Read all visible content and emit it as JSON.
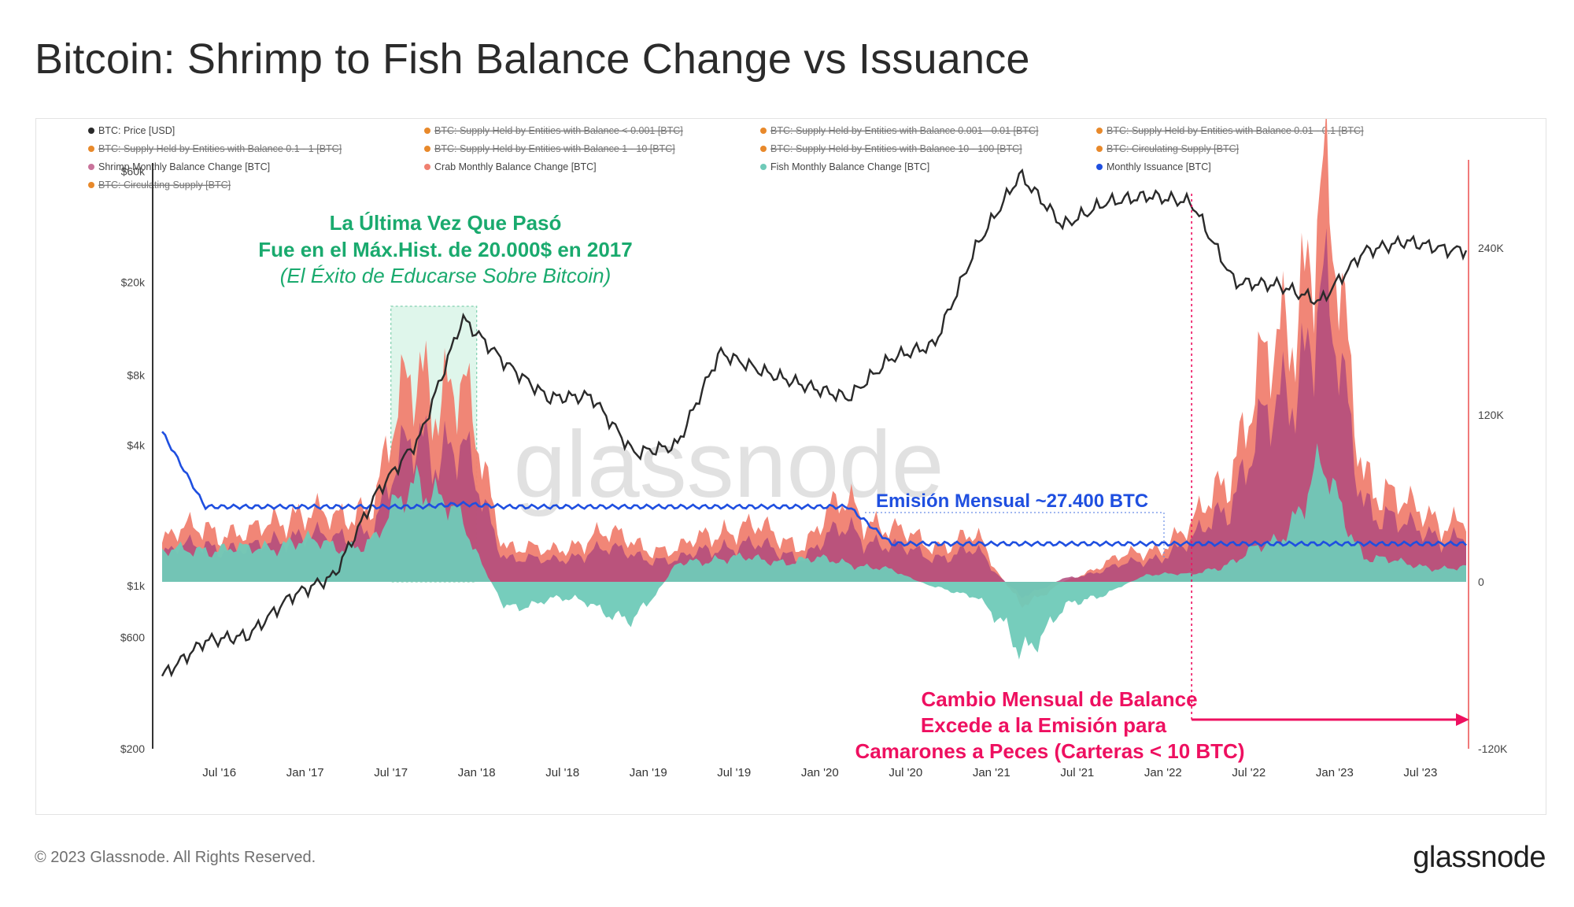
{
  "title": "Bitcoin: Shrimp to Fish Balance Change vs Issuance",
  "footer": {
    "copyright": "© 2023 Glassnode. All Rights Reserved.",
    "logo": "glassnode"
  },
  "watermark": "glassnode",
  "colors": {
    "price": "#2a2a2a",
    "shrimp": "#b04a7c",
    "crab": "#f08070",
    "fish": "#6fcab8",
    "issuance": "#1f4fe0",
    "disabled": "#e8892b",
    "annotation_green": "#1aaa6e",
    "annotation_red": "#ee1060",
    "annotation_blue": "#1f4fe0"
  },
  "legend": [
    {
      "label": "BTC: Price [USD]",
      "color": "#2a2a2a",
      "disabled": false
    },
    {
      "label": "BTC: Supply Held by Entities with Balance < 0.001 [BTC]",
      "color": "#e8892b",
      "disabled": true
    },
    {
      "label": "BTC: Supply Held by Entities with Balance 0.001 - 0.01 [BTC]",
      "color": "#e8892b",
      "disabled": true
    },
    {
      "label": "BTC: Supply Held by Entities with Balance 0.01 - 0.1 [BTC]",
      "color": "#e8892b",
      "disabled": true
    },
    {
      "label": "BTC: Supply Held by Entities with Balance 0.1 - 1 [BTC]",
      "color": "#e8892b",
      "disabled": true
    },
    {
      "label": "BTC: Supply Held by Entities with Balance 1 - 10 [BTC]",
      "color": "#e8892b",
      "disabled": true
    },
    {
      "label": "BTC: Supply Held by Entities with Balance 10 - 100 [BTC]",
      "color": "#e8892b",
      "disabled": true
    },
    {
      "label": "BTC: Circulating Supply [BTC]",
      "color": "#e8892b",
      "disabled": true
    },
    {
      "label": "Shrimp Monthly Balance Change [BTC]",
      "color": "#c9739b",
      "disabled": false
    },
    {
      "label": "Crab Monthly Balance Change [BTC]",
      "color": "#f08070",
      "disabled": false
    },
    {
      "label": "Fish Monthly Balance Change [BTC]",
      "color": "#6fcab8",
      "disabled": false
    },
    {
      "label": "Monthly Issuance [BTC]",
      "color": "#1f4fe0",
      "disabled": false
    },
    {
      "label": "BTC: Circulating Supply [BTC]",
      "color": "#e8892b",
      "disabled": true
    }
  ],
  "annotations": {
    "green_line1": "La Última Vez Que Pasó",
    "green_line2": "Fue en el Máx.Hist. de 20.000$ en 2017",
    "green_line3": "(El Éxito de Educarse Sobre Bitcoin)",
    "issuance_label": "Emisión Mensual ~27.400 BTC",
    "red_line1": "Cambio Mensual de Balance",
    "red_line2": "Excede a la Emisión para",
    "red_line3": "Camarones a Peces (Carteras < 10 BTC)"
  },
  "chart_data": {
    "type": "area",
    "x_ticks": [
      "Jul '16",
      "Jan '17",
      "Jul '17",
      "Jan '18",
      "Jul '18",
      "Jan '19",
      "Jul '19",
      "Jan '20",
      "Jul '20",
      "Jan '21",
      "Jul '21",
      "Jan '22",
      "Jul '22",
      "Jan '23",
      "Jul '23"
    ],
    "y_left": {
      "label": "BTC: Price [USD]",
      "scale": "log",
      "ticks": [
        "$60k",
        "$20k",
        "$8k",
        "$4k",
        "$1k",
        "$600",
        "$200"
      ]
    },
    "y_right": {
      "label": "Monthly Balance Change [BTC]",
      "ticks": [
        "240K",
        "120K",
        "0",
        "-120K"
      ],
      "range": [
        -120000,
        300000
      ]
    },
    "x": [
      "2016-03",
      "2016-06",
      "2016-09",
      "2016-12",
      "2017-03",
      "2017-06",
      "2017-09",
      "2017-12",
      "2018-03",
      "2018-06",
      "2018-09",
      "2018-12",
      "2019-03",
      "2019-06",
      "2019-09",
      "2019-12",
      "2020-03",
      "2020-06",
      "2020-09",
      "2020-12",
      "2021-03",
      "2021-06",
      "2021-09",
      "2021-12",
      "2022-03",
      "2022-06",
      "2022-09",
      "2022-12",
      "2023-03",
      "2023-06",
      "2023-09"
    ],
    "price_usd": [
      410,
      580,
      610,
      900,
      1100,
      2500,
      4300,
      14000,
      9000,
      6400,
      6500,
      3700,
      4000,
      10000,
      8300,
      7200,
      6400,
      9500,
      10800,
      29000,
      58000,
      35000,
      44000,
      47000,
      44000,
      20000,
      19500,
      16500,
      27000,
      30000,
      27500
    ],
    "series": [
      {
        "name": "Shrimp Monthly Balance Change [BTC]",
        "values": [
          8000,
          12000,
          9000,
          15000,
          12000,
          20000,
          50000,
          40000,
          8000,
          6000,
          10000,
          9000,
          6000,
          12000,
          10000,
          8000,
          15000,
          10000,
          8000,
          9000,
          -3000,
          5000,
          3000,
          8000,
          14000,
          35000,
          70000,
          120000,
          35000,
          20000,
          18000
        ]
      },
      {
        "name": "Crab Monthly Balance Change [BTC]",
        "values": [
          20000,
          30000,
          22000,
          38000,
          30000,
          45000,
          110000,
          90000,
          20000,
          14000,
          24000,
          20000,
          15000,
          28000,
          26000,
          20000,
          45000,
          25000,
          20000,
          22000,
          -15000,
          -5000,
          10000,
          16000,
          22000,
          60000,
          95000,
          160000,
          50000,
          30000,
          28000
        ]
      },
      {
        "name": "Fish Monthly Balance Change [BTC]",
        "values": [
          20000,
          25000,
          22000,
          30000,
          25000,
          30000,
          80000,
          40000,
          -20000,
          -12000,
          -15000,
          -30000,
          12000,
          18000,
          15000,
          16000,
          14000,
          8000,
          -4000,
          -10000,
          -50000,
          -20000,
          -8000,
          6000,
          5000,
          15000,
          30000,
          80000,
          20000,
          12000,
          10000
        ]
      },
      {
        "name": "Monthly Issuance [BTC]",
        "values": [
          108000,
          54000,
          54000,
          54000,
          54000,
          54000,
          54000,
          56000,
          54000,
          54000,
          54000,
          54000,
          54000,
          54000,
          54000,
          54000,
          54000,
          27400,
          27400,
          27400,
          27400,
          27400,
          27400,
          27400,
          27400,
          27400,
          27400,
          27400,
          27400,
          27400,
          27400
        ]
      }
    ]
  }
}
